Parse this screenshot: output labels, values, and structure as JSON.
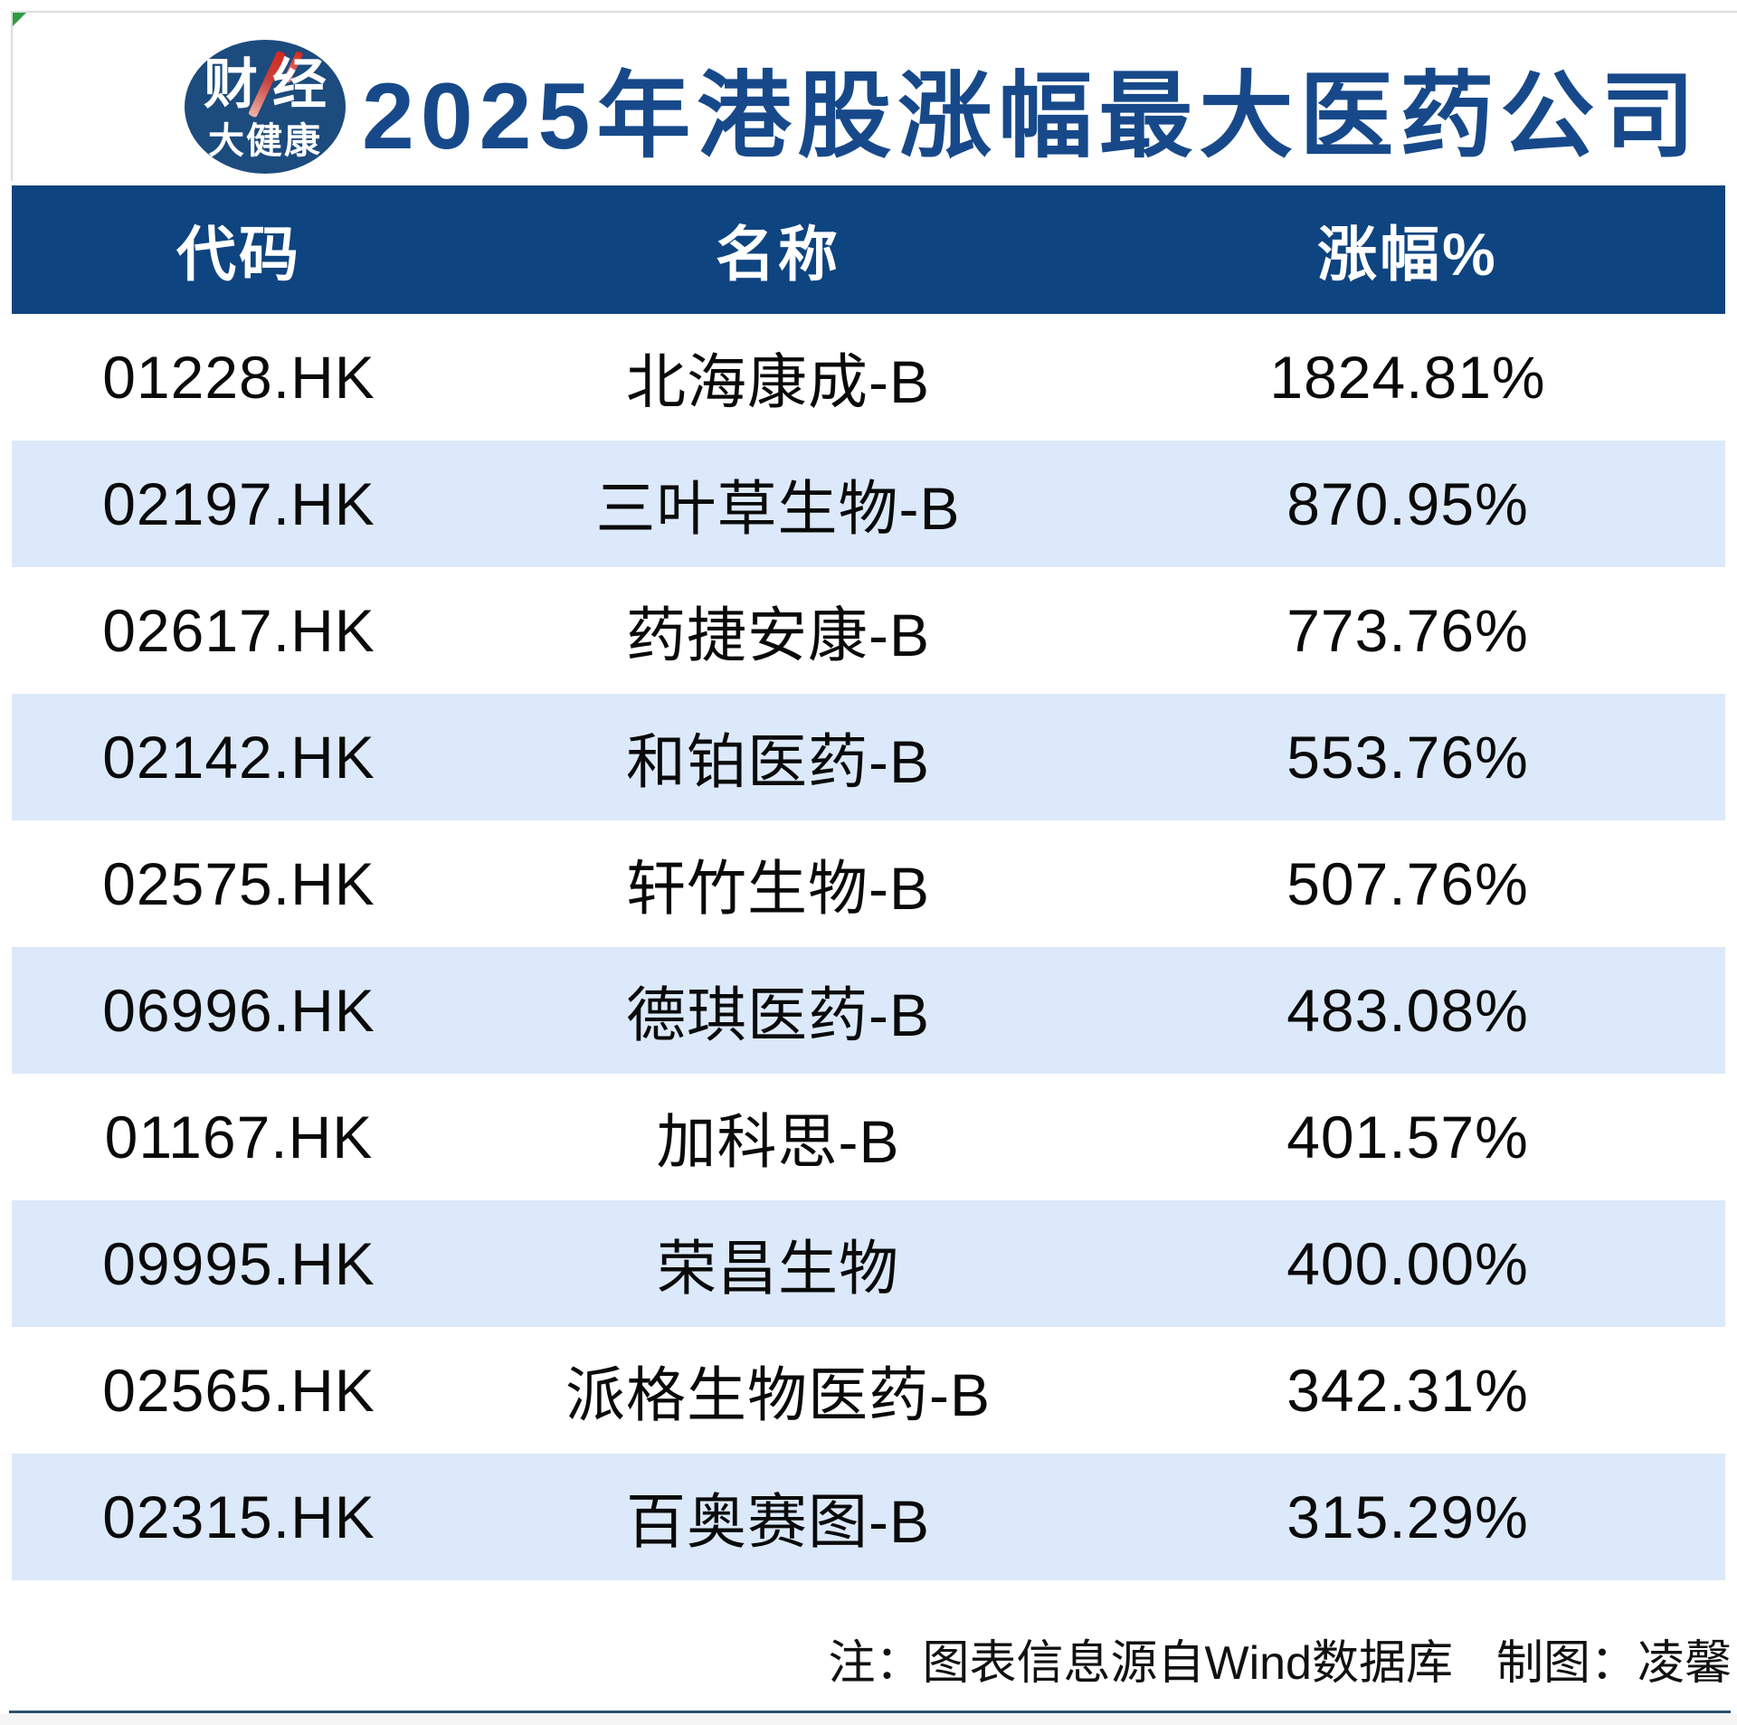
{
  "header": {
    "title": "2025年港股涨幅最大医药公司"
  },
  "logo": {
    "line1": "财经",
    "line2": "大健康"
  },
  "table": {
    "columns": [
      "代码",
      "名称",
      "涨幅%"
    ],
    "rows": [
      {
        "code": "01228.HK",
        "name": "北海康成-B",
        "change": "1824.81%"
      },
      {
        "code": "02197.HK",
        "name": "三叶草生物-B",
        "change": "870.95%"
      },
      {
        "code": "02617.HK",
        "name": "药捷安康-B",
        "change": "773.76%"
      },
      {
        "code": "02142.HK",
        "name": "和铂医药-B",
        "change": "553.76%"
      },
      {
        "code": "02575.HK",
        "name": "轩竹生物-B",
        "change": "507.76%"
      },
      {
        "code": "06996.HK",
        "name": "德琪医药-B",
        "change": "483.08%"
      },
      {
        "code": "01167.HK",
        "name": "加科思-B",
        "change": "401.57%"
      },
      {
        "code": "09995.HK",
        "name": "荣昌生物",
        "change": "400.00%"
      },
      {
        "code": "02565.HK",
        "name": "派格生物医药-B",
        "change": "342.31%"
      },
      {
        "code": "02315.HK",
        "name": "百奥赛图-B",
        "change": "315.29%"
      }
    ]
  },
  "footer": {
    "note": "注：图表信息源自Wind数据库",
    "credit": "制图：凌馨"
  },
  "colors": {
    "header_bg": "#0e4480",
    "title_text": "#17498a",
    "row_alt_bg": "#dce9fa",
    "logo_circle": "#1c4b7e",
    "logo_slash_red": "#d5281f",
    "corner_flag_green": "#2d9c41",
    "bottom_rule": "#2c506e"
  },
  "chart_data": {
    "type": "table",
    "title": "2025年港股涨幅最大医药公司",
    "columns": [
      "代码",
      "名称",
      "涨幅%"
    ],
    "rows": [
      [
        "01228.HK",
        "北海康成-B",
        "1824.81%"
      ],
      [
        "02197.HK",
        "三叶草生物-B",
        "870.95%"
      ],
      [
        "02617.HK",
        "药捷安康-B",
        "773.76%"
      ],
      [
        "02142.HK",
        "和铂医药-B",
        "553.76%"
      ],
      [
        "02575.HK",
        "轩竹生物-B",
        "507.76%"
      ],
      [
        "06996.HK",
        "德琪医药-B",
        "483.08%"
      ],
      [
        "01167.HK",
        "加科思-B",
        "401.57%"
      ],
      [
        "09995.HK",
        "荣昌生物",
        "400.00%"
      ],
      [
        "02565.HK",
        "派格生物医药-B",
        "342.31%"
      ],
      [
        "02315.HK",
        "百奥赛图-B",
        "315.29%"
      ]
    ],
    "values": [
      1824.81,
      870.95,
      773.76,
      553.76,
      507.76,
      483.08,
      401.57,
      400.0,
      342.31,
      315.29
    ],
    "source_note": "注：图表信息源自Wind数据库",
    "credit": "制图：凌馨"
  }
}
